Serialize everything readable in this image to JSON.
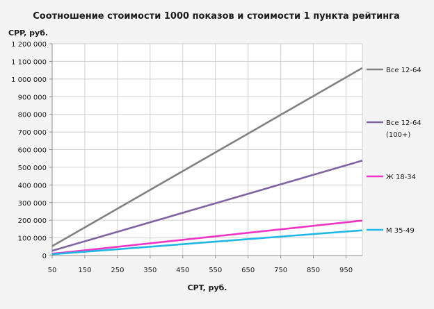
{
  "chart_data": {
    "type": "line",
    "title": "Соотношение стоимости 1000 показов и стоимости 1 пункта рейтинга",
    "ylabel": "CPP, руб.",
    "xlabel": "CPT, руб.",
    "xlim": [
      50,
      1000
    ],
    "ylim": [
      0,
      1200000
    ],
    "x_ticks": [
      50,
      150,
      250,
      350,
      450,
      550,
      650,
      750,
      850,
      950
    ],
    "x_tick_labels": [
      "50",
      "150",
      "250",
      "350",
      "450",
      "550",
      "650",
      "750",
      "850",
      "950"
    ],
    "y_ticks": [
      0,
      100000,
      200000,
      300000,
      400000,
      500000,
      600000,
      700000,
      800000,
      900000,
      1000000,
      1100000,
      1200000
    ],
    "y_tick_labels": [
      "0",
      "100 000",
      "200 000",
      "300 000",
      "400 000",
      "500 000",
      "600 000",
      "700 000",
      "800 000",
      "900 000",
      "1 000 000",
      "1 100 000",
      "1 200 000"
    ],
    "grid": true,
    "legend_position": "right",
    "series": [
      {
        "name": "Все 12-64",
        "label_lines": [
          "Все 12-64"
        ],
        "color": "#808080",
        "x": [
          50,
          1000
        ],
        "y": [
          53000,
          1063000
        ]
      },
      {
        "name": "Все 12-64 (100+)",
        "label_lines": [
          "Все 12-64",
          "(100+)"
        ],
        "color": "#8064a2",
        "x": [
          50,
          1000
        ],
        "y": [
          27000,
          538000
        ]
      },
      {
        "name": "Ж 18-34",
        "label_lines": [
          "Ж 18-34"
        ],
        "color": "#ee35c6",
        "x": [
          50,
          1000
        ],
        "y": [
          10000,
          198000
        ]
      },
      {
        "name": "М 35-49",
        "label_lines": [
          "М 35-49"
        ],
        "color": "#1fb7e6",
        "x": [
          50,
          1000
        ],
        "y": [
          7000,
          143000
        ]
      }
    ]
  }
}
